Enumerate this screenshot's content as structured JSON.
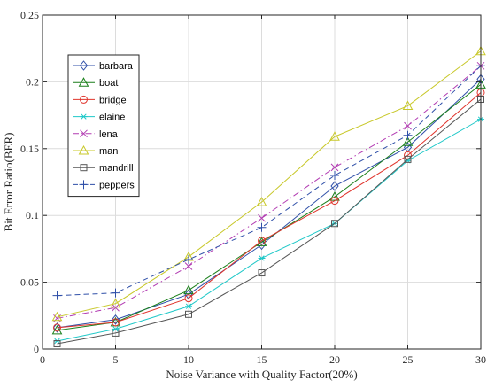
{
  "chart_data": {
    "type": "line",
    "title": "",
    "xlabel": "Noise Variance with Quality Factor(20%)",
    "ylabel": "Bit Error Ratio(BER)",
    "xlim": [
      0,
      30
    ],
    "ylim": [
      0,
      0.25
    ],
    "xticks": [
      0,
      5,
      10,
      15,
      20,
      25,
      30
    ],
    "yticks": [
      0,
      0.05,
      0.1,
      0.15,
      0.2,
      0.25
    ],
    "xtick_labels": [
      "0",
      "5",
      "10",
      "15",
      "20",
      "25",
      "30"
    ],
    "ytick_labels": [
      "0",
      "0.05",
      "0.1",
      "0.15",
      "0.2",
      "0.25"
    ],
    "grid": true,
    "legend_position": "top-left",
    "x": [
      1,
      5,
      10,
      15,
      20,
      25,
      30
    ],
    "series": [
      {
        "name": "barbara",
        "values": [
          0.016,
          0.022,
          0.041,
          0.078,
          0.122,
          0.151,
          0.202
        ],
        "color": "#2f4fa8",
        "marker": "diamond",
        "dash": "solid"
      },
      {
        "name": "boat",
        "values": [
          0.014,
          0.02,
          0.044,
          0.08,
          0.114,
          0.155,
          0.198
        ],
        "color": "#1a7f1a",
        "marker": "triangle",
        "dash": "solid"
      },
      {
        "name": "bridge",
        "values": [
          0.016,
          0.02,
          0.038,
          0.081,
          0.111,
          0.145,
          0.192
        ],
        "color": "#e0342c",
        "marker": "circle",
        "dash": "solid"
      },
      {
        "name": "elaine",
        "values": [
          0.006,
          0.015,
          0.032,
          0.068,
          0.094,
          0.141,
          0.172
        ],
        "color": "#1fc8c8",
        "marker": "asterisk",
        "dash": "solid"
      },
      {
        "name": "lena",
        "values": [
          0.023,
          0.031,
          0.062,
          0.098,
          0.136,
          0.167,
          0.212
        ],
        "color": "#b23bb2",
        "marker": "x",
        "dash": "dashdot"
      },
      {
        "name": "man",
        "values": [
          0.024,
          0.034,
          0.069,
          0.11,
          0.159,
          0.182,
          0.223
        ],
        "color": "#c8c82a",
        "marker": "triangle",
        "dash": "solid"
      },
      {
        "name": "mandrill",
        "values": [
          0.004,
          0.012,
          0.026,
          0.057,
          0.094,
          0.142,
          0.187
        ],
        "color": "#555555",
        "marker": "square",
        "dash": "solid"
      },
      {
        "name": "peppers",
        "values": [
          0.04,
          0.042,
          0.067,
          0.091,
          0.13,
          0.16,
          0.212
        ],
        "color": "#2f4fa8",
        "marker": "plus",
        "dash": "dashed"
      }
    ]
  }
}
